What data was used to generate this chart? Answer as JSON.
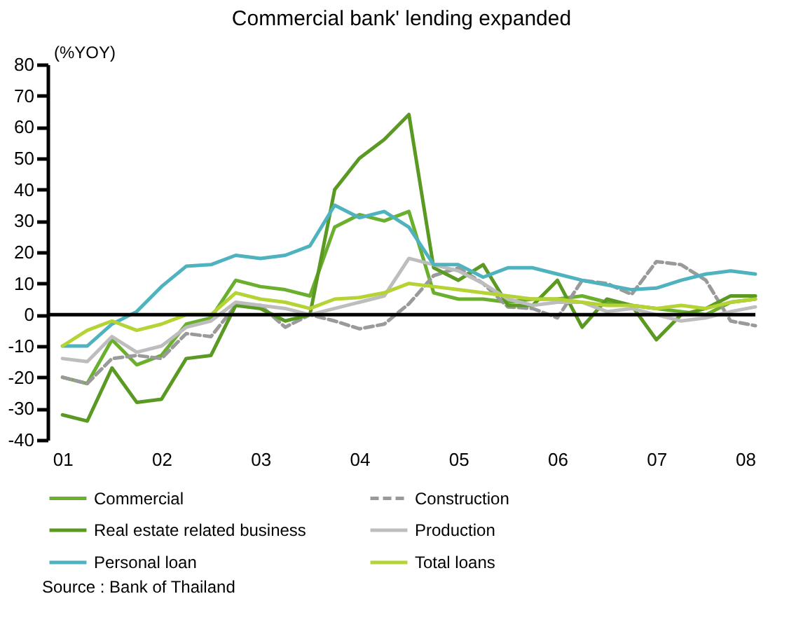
{
  "chart_data": {
    "type": "line",
    "title": "Commercial bank' lending expanded",
    "ylabel": "(%YOY)",
    "x": [
      2001,
      2001.25,
      2001.5,
      2001.75,
      2002,
      2002.25,
      2002.5,
      2002.75,
      2003,
      2003.25,
      2003.5,
      2003.75,
      2004,
      2004.25,
      2004.5,
      2004.75,
      2005,
      2005.25,
      2005.5,
      2005.75,
      2006,
      2006.25,
      2006.5,
      2006.75,
      2007,
      2007.25,
      2007.5,
      2007.75,
      2008
    ],
    "xlim": [
      2000.85,
      2008
    ],
    "xticks": [
      {
        "value": 2001,
        "label": "01"
      },
      {
        "value": 2002,
        "label": "02"
      },
      {
        "value": 2003,
        "label": "03"
      },
      {
        "value": 2004,
        "label": "04"
      },
      {
        "value": 2005,
        "label": "05"
      },
      {
        "value": 2006,
        "label": "06"
      },
      {
        "value": 2007,
        "label": "07"
      },
      {
        "value": 2008,
        "label": "08"
      }
    ],
    "ylim": [
      -40,
      80
    ],
    "yticks": [
      -40,
      -30,
      -20,
      -10,
      0,
      10,
      20,
      30,
      40,
      50,
      60,
      70,
      80
    ],
    "series": [
      {
        "name": "Commercial",
        "color": "#6aaf2e",
        "values": [
          -20,
          -22,
          -8,
          -16,
          -13,
          -3,
          -1,
          11,
          9,
          8,
          6,
          28,
          32,
          30,
          33,
          7,
          5,
          5,
          4,
          5,
          5,
          6,
          4,
          3,
          2,
          1,
          0,
          4,
          5
        ]
      },
      {
        "name": "Construction",
        "color": "#9a9a9a",
        "line_style": "dashed",
        "values": [
          -20,
          -22,
          -14,
          -13,
          -14,
          -6,
          -7,
          3,
          3,
          -4,
          0,
          -2,
          -4.5,
          -3,
          3.5,
          12.5,
          15,
          10,
          2.5,
          2,
          -1,
          11,
          10,
          6.5,
          17,
          16,
          11,
          -2,
          -3.5
        ]
      },
      {
        "name": "Real estate related business",
        "color": "#5a9a22",
        "values": [
          -32,
          -34,
          -17,
          -28,
          -27,
          -14,
          -13,
          3,
          2,
          -2,
          0,
          40,
          50,
          56,
          64,
          15,
          11,
          16,
          3,
          3,
          11,
          -4,
          5,
          3,
          -8,
          0,
          2,
          6,
          6
        ]
      },
      {
        "name": "Production",
        "color": "#bdbdbd",
        "values": [
          -14,
          -15,
          -7,
          -12,
          -10,
          -4,
          -2,
          4,
          3,
          2,
          0,
          2,
          4,
          6,
          18,
          16,
          14,
          10,
          5,
          3,
          4,
          4,
          1,
          2,
          0,
          -2,
          -1,
          1,
          2.5
        ]
      },
      {
        "name": "Personal loan",
        "color": "#4fb3bf",
        "values": [
          -10,
          -10,
          -3,
          1,
          9,
          15.5,
          16,
          19,
          18,
          19,
          22,
          35,
          31,
          33,
          28,
          16,
          16,
          12,
          15,
          15,
          13,
          11,
          9.5,
          8,
          8.5,
          11,
          13,
          14,
          13
        ]
      },
      {
        "name": "Total loans",
        "color": "#b5d334",
        "values": [
          -10,
          -5,
          -2,
          -5,
          -3,
          0,
          0,
          7,
          5,
          4,
          2,
          5,
          5.5,
          7,
          10,
          9,
          8,
          7,
          6,
          5,
          5,
          4,
          3,
          3,
          2,
          3,
          2,
          4,
          5
        ]
      }
    ],
    "ref_lines": [
      {
        "axis": "y",
        "value": 0
      }
    ],
    "legend": "bottom",
    "marker": "none",
    "line_style": "solid",
    "annotations": [
      "Source : Bank of Thailand"
    ]
  }
}
